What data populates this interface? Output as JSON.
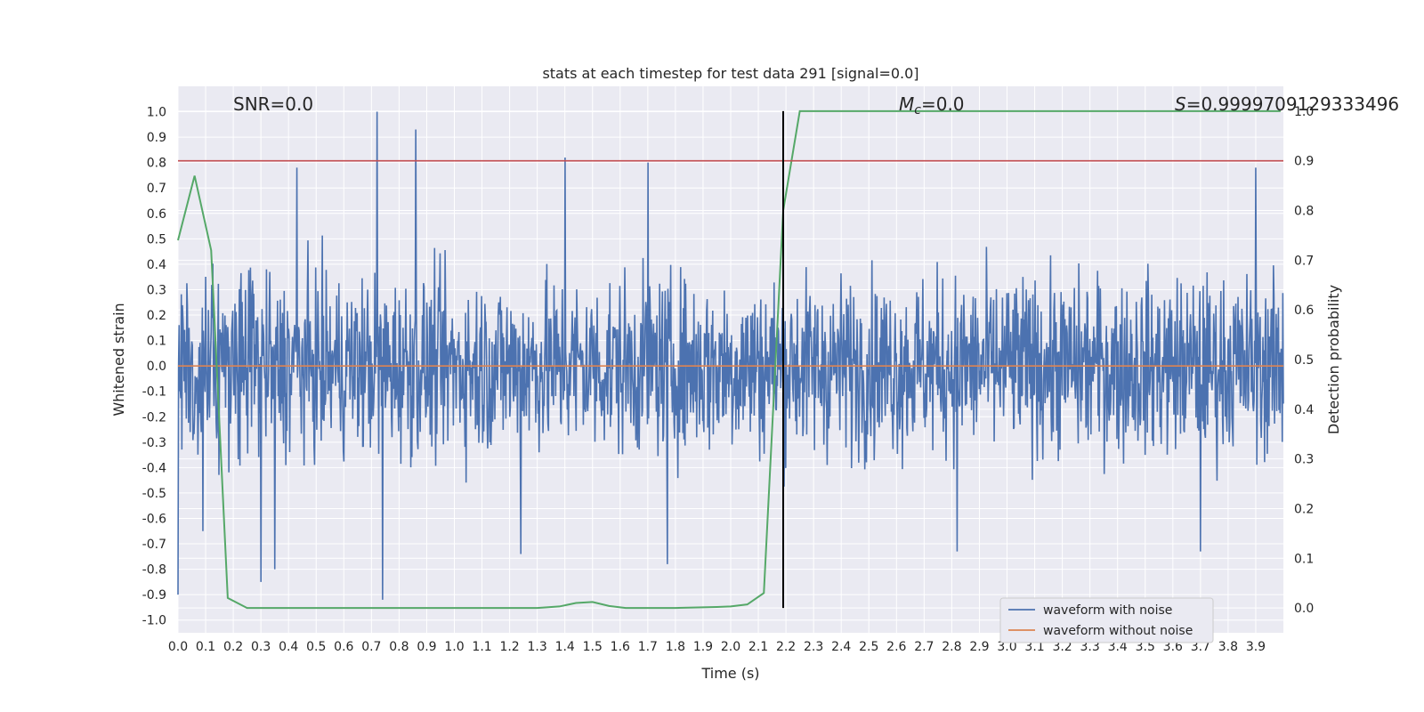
{
  "chart_data": {
    "type": "line",
    "title": "stats at each timestep for test data 291 [signal=0.0]",
    "xlabel": "Time (s)",
    "ylabel_left": "Whitened strain",
    "ylabel_right": "Detection probability",
    "xlim": [
      0.0,
      4.0
    ],
    "ylim_left": [
      -1.05,
      1.1
    ],
    "ylim_right": [
      -0.05,
      1.05
    ],
    "x_ticks": [
      "0.0",
      "0.1",
      "0.2",
      "0.3",
      "0.4",
      "0.5",
      "0.6",
      "0.7",
      "0.8",
      "0.9",
      "1.0",
      "1.1",
      "1.2",
      "1.3",
      "1.4",
      "1.5",
      "1.6",
      "1.7",
      "1.8",
      "1.9",
      "2.0",
      "2.1",
      "2.2",
      "2.3",
      "2.4",
      "2.5",
      "2.6",
      "2.7",
      "2.8",
      "2.9",
      "3.0",
      "3.1",
      "3.2",
      "3.3",
      "3.4",
      "3.5",
      "3.6",
      "3.7",
      "3.8",
      "3.9"
    ],
    "y_ticks_left": [
      "-1.0",
      "-0.9",
      "-0.8",
      "-0.7",
      "-0.6",
      "-0.5",
      "-0.4",
      "-0.3",
      "-0.2",
      "-0.1",
      "0.0",
      "0.1",
      "0.2",
      "0.3",
      "0.4",
      "0.5",
      "0.6",
      "0.7",
      "0.8",
      "0.9",
      "1.0"
    ],
    "y_ticks_right": [
      "0.0",
      "0.1",
      "0.2",
      "0.3",
      "0.4",
      "0.5",
      "0.6",
      "0.7",
      "0.8",
      "0.9",
      "1.0"
    ],
    "grid": true,
    "annotations": {
      "snr": "SNR=0.0",
      "mc_symbol": "M",
      "mc_sub": "c",
      "mc_value": "=0.0",
      "s_symbol": "S",
      "s_value": "=0.9999709129333496"
    },
    "vertical_line_x": 2.19,
    "threshold_right_y": 0.9,
    "noise_envelope": {
      "note_amplitude": 0.45,
      "spikes": [
        {
          "x": 0.72,
          "y": 1.0
        },
        {
          "x": 0.86,
          "y": 0.93
        },
        {
          "x": 0.43,
          "y": 0.78
        },
        {
          "x": 1.4,
          "y": 0.82
        },
        {
          "x": 1.7,
          "y": 0.8
        },
        {
          "x": 3.9,
          "y": 0.78
        },
        {
          "x": 0.74,
          "y": -0.92
        },
        {
          "x": 0.3,
          "y": -0.85
        },
        {
          "x": 0.35,
          "y": -0.8
        },
        {
          "x": 1.77,
          "y": -0.78
        },
        {
          "x": 2.82,
          "y": -0.73
        },
        {
          "x": 1.24,
          "y": -0.74
        },
        {
          "x": 0.09,
          "y": -0.65
        },
        {
          "x": 3.7,
          "y": -0.73
        },
        {
          "x": 0.0,
          "y": -0.9
        }
      ]
    },
    "series": [
      {
        "name": "waveform with noise",
        "color": "#4c72b0",
        "axis": "left"
      },
      {
        "name": "waveform without noise",
        "color": "#dd8452",
        "axis": "left",
        "x": [
          0.0,
          4.0
        ],
        "y": [
          0.0,
          0.0
        ]
      },
      {
        "color": "#55a868",
        "axis": "right",
        "x": [
          0.0,
          0.06,
          0.12,
          0.18,
          0.25,
          0.3,
          0.4,
          0.6,
          0.8,
          1.0,
          1.2,
          1.3,
          1.38,
          1.44,
          1.5,
          1.56,
          1.62,
          1.8,
          1.95,
          2.0,
          2.06,
          2.12,
          2.19,
          2.25,
          2.4,
          3.0,
          3.99
        ],
        "y": [
          0.74,
          0.87,
          0.72,
          0.02,
          0.0,
          0.0,
          0.0,
          0.0,
          0.0,
          0.0,
          0.0,
          0.0,
          0.003,
          0.01,
          0.012,
          0.004,
          0.0,
          0.0,
          0.002,
          0.003,
          0.007,
          0.03,
          0.8,
          1.0,
          1.0,
          1.0,
          1.0
        ]
      }
    ],
    "legend": {
      "placement": "bottom-right",
      "entries": [
        {
          "label": "waveform with noise",
          "color": "#4c72b0"
        },
        {
          "label": "waveform without noise",
          "color": "#dd8452"
        }
      ]
    }
  },
  "colors": {
    "plot_bg": "#eaeaf2",
    "grid": "#ffffff",
    "noise": "#4c72b0",
    "clean": "#dd8452",
    "prob": "#55a868",
    "threshold": "#c44e52",
    "vline": "#000000"
  }
}
